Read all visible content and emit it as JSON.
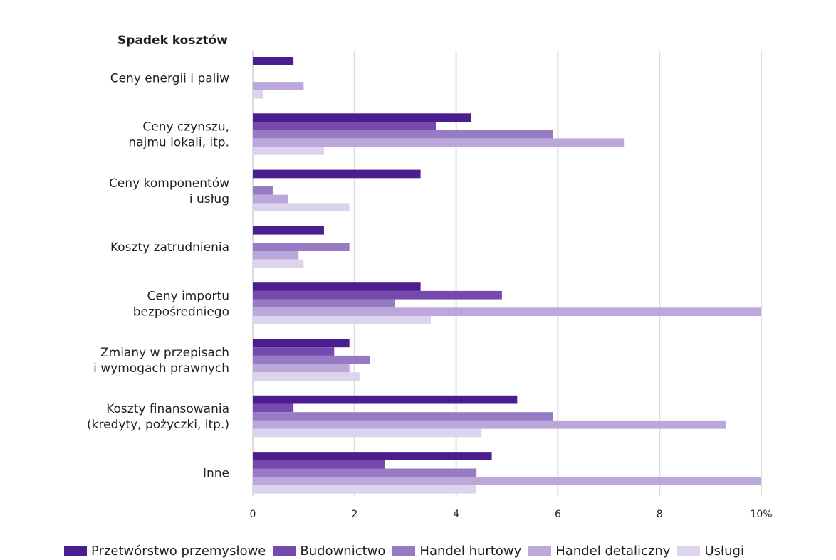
{
  "chart_data": {
    "type": "bar",
    "orientation": "horizontal",
    "title": "Spadek kosztów",
    "categories": [
      "Ceny energii i paliw",
      "Ceny czynszu,\nnajmu lokali, itp.",
      "Ceny komponentów\ni usług",
      "Koszty zatrudnienia",
      "Ceny importu\nbezpośredniego",
      "Zmiany w przepisach\ni wymogach prawnych",
      "Koszty finansowania\n(kredyty, pożyczki, itp.)",
      "Inne"
    ],
    "series": [
      {
        "name": "Przetwórstwo przemysłowe",
        "color": "#4b1e8f",
        "values": [
          0.8,
          4.3,
          3.3,
          1.4,
          3.3,
          1.9,
          5.2,
          4.7
        ]
      },
      {
        "name": "Budownictwo",
        "color": "#7549ad",
        "values": [
          0,
          3.6,
          0,
          0,
          4.9,
          1.6,
          0.8,
          2.6
        ]
      },
      {
        "name": "Handel hurtowy",
        "color": "#967bc4",
        "values": [
          0,
          5.9,
          0.4,
          1.9,
          2.8,
          2.3,
          5.9,
          4.4
        ]
      },
      {
        "name": "Handel detaliczny",
        "color": "#bba7d9",
        "values": [
          1.0,
          7.3,
          0.7,
          0.9,
          10.0,
          1.9,
          9.3,
          10.0
        ]
      },
      {
        "name": "Usługi",
        "color": "#ddd3ec",
        "values": [
          0.2,
          1.4,
          1.9,
          1.0,
          3.5,
          2.1,
          4.5,
          4.4
        ]
      }
    ],
    "xlim": [
      0,
      10
    ],
    "x_ticks": [
      "0",
      "2",
      "4",
      "6",
      "8",
      "10%"
    ],
    "grid": true,
    "legend_position": "bottom"
  }
}
